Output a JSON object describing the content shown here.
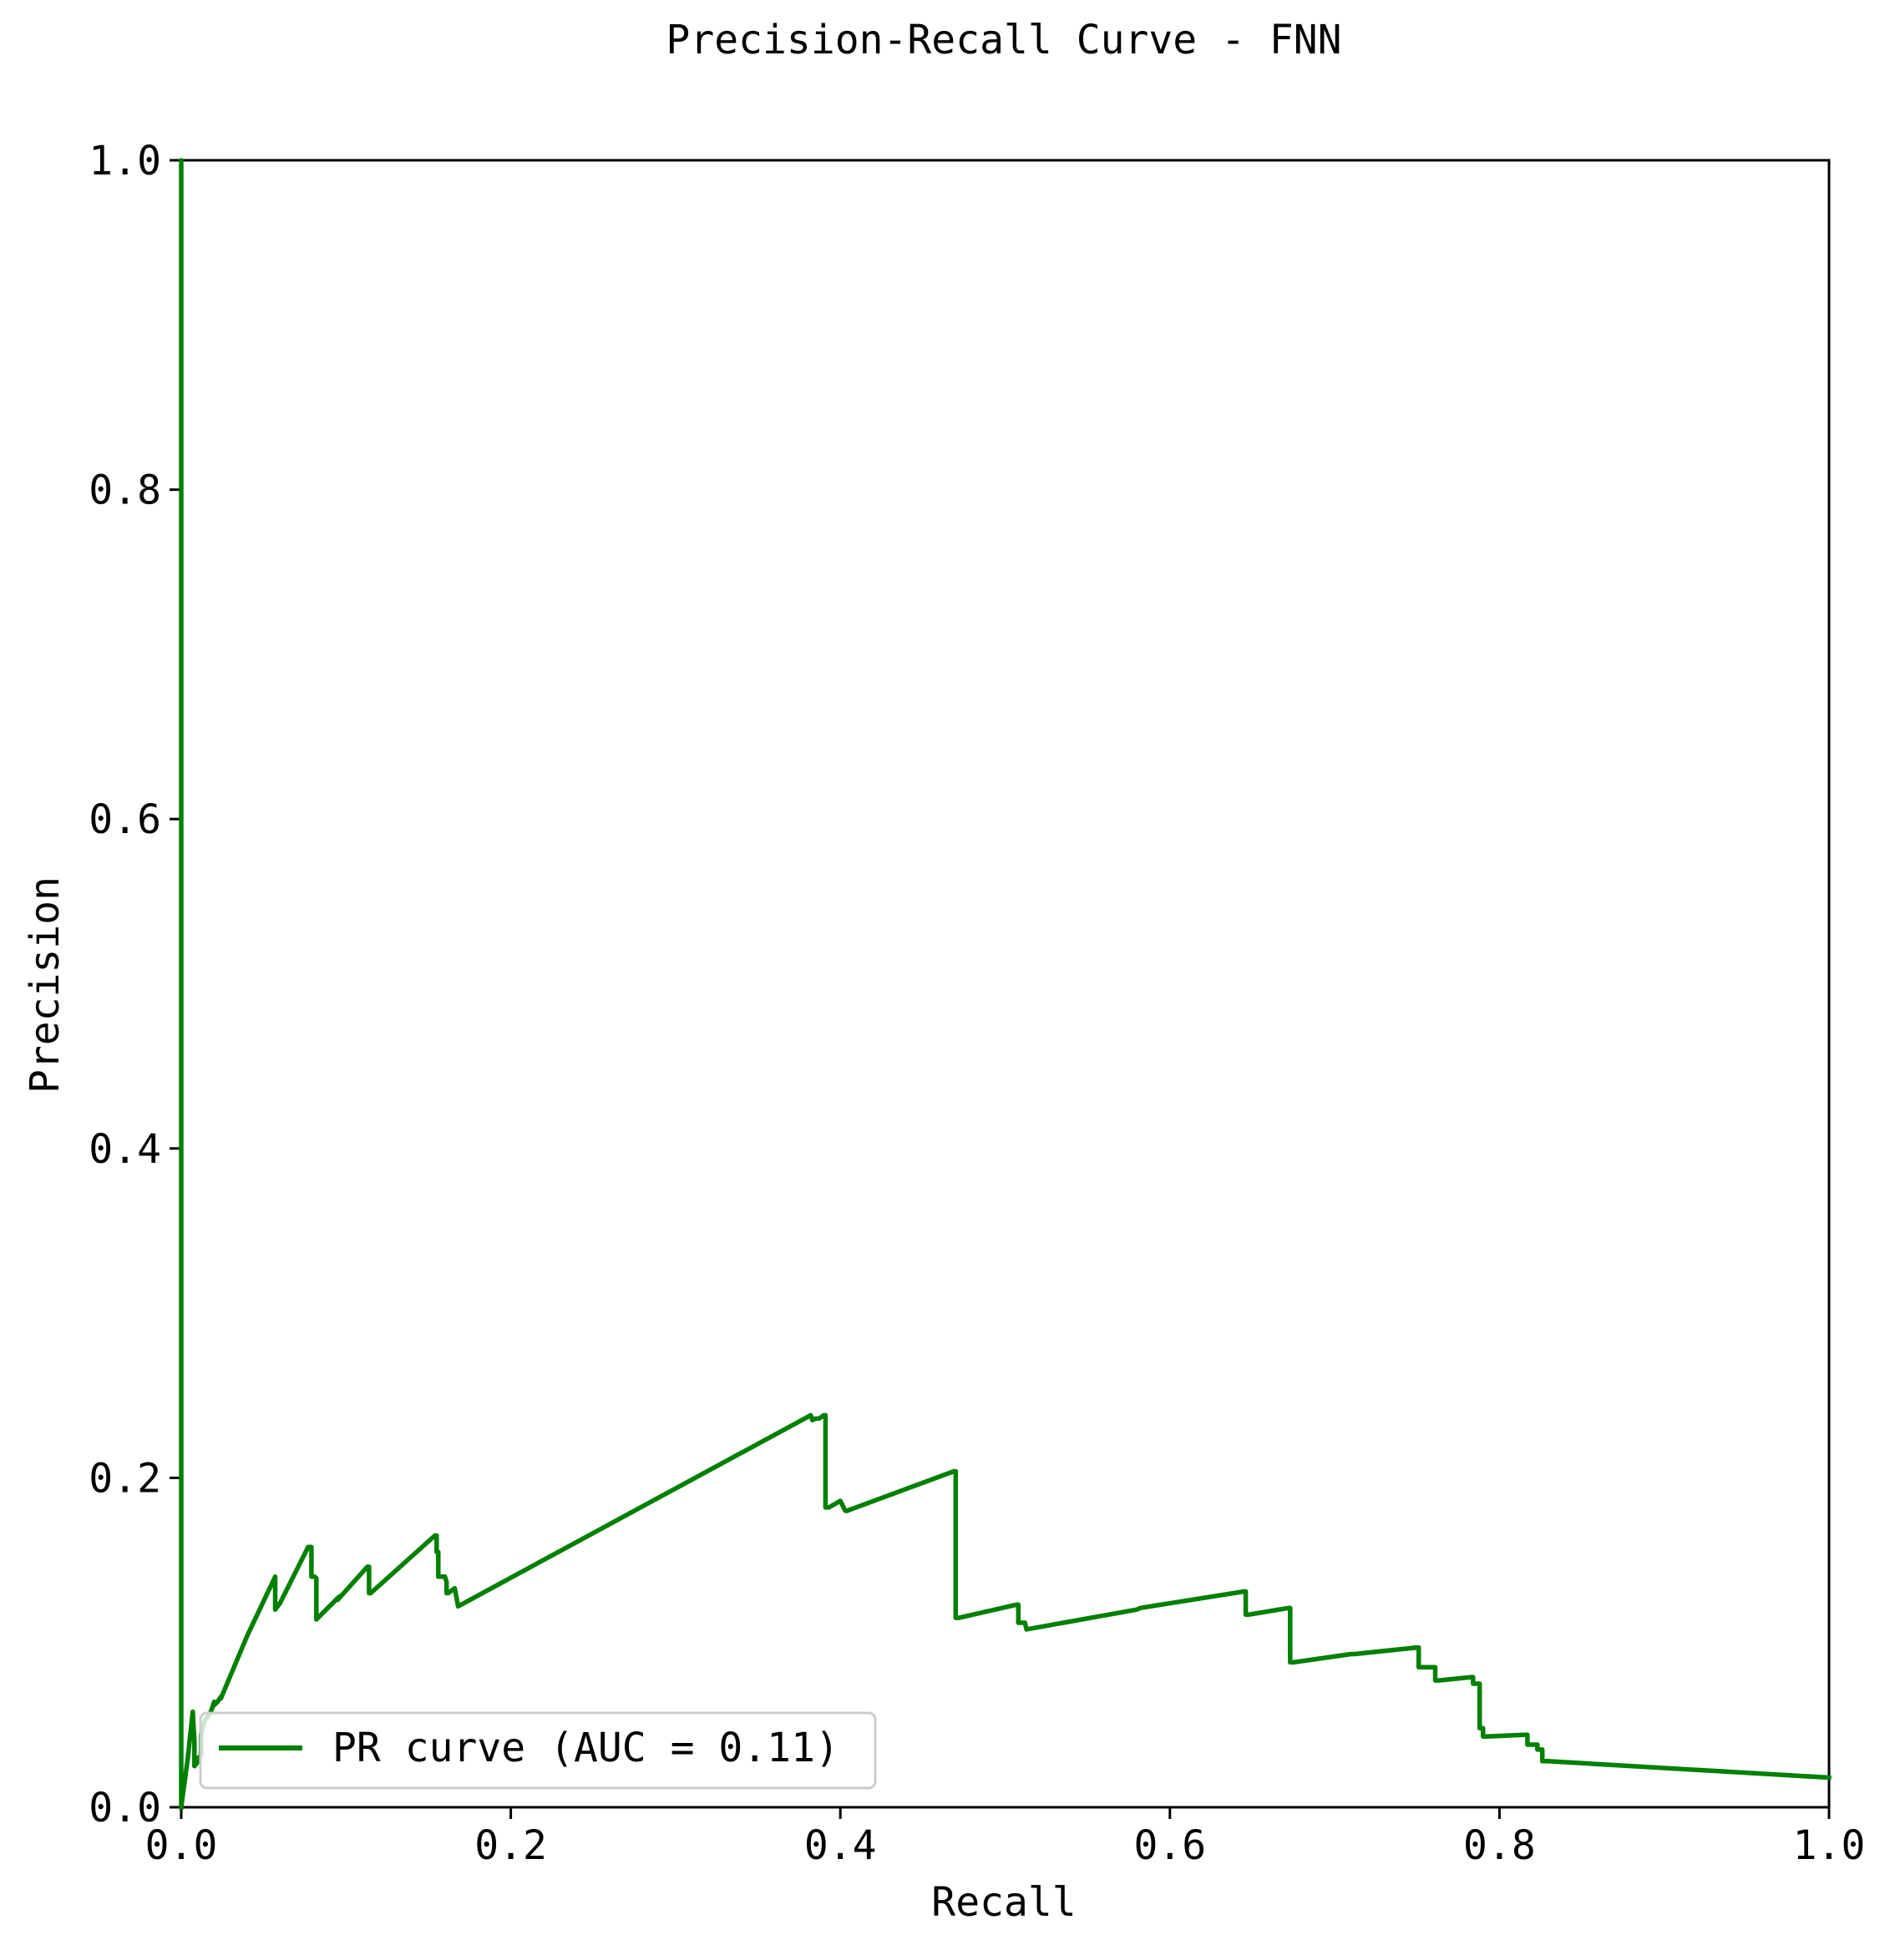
{
  "chart_data": {
    "type": "line",
    "title": "Precision-Recall Curve - FNN",
    "xlabel": "Recall",
    "ylabel": "Precision",
    "xlim": [
      0.0,
      1.0
    ],
    "ylim": [
      0.0,
      1.0
    ],
    "x_ticks": [
      "0.0",
      "0.2",
      "0.4",
      "0.6",
      "0.8",
      "1.0"
    ],
    "y_ticks": [
      "0.0",
      "0.2",
      "0.4",
      "0.6",
      "0.8",
      "1.0"
    ],
    "grid": false,
    "legend_position": "lower-left",
    "series": [
      {
        "name": "PR curve (AUC = 0.11)",
        "color": "#008000",
        "x": [
          0.0,
          0.0,
          0.0,
          0.004,
          0.007,
          0.008,
          0.008,
          0.009,
          0.009,
          0.012,
          0.012,
          0.014,
          0.016,
          0.018,
          0.018,
          0.02,
          0.02,
          0.022,
          0.024,
          0.024,
          0.04,
          0.057,
          0.057,
          0.06,
          0.077,
          0.079,
          0.079,
          0.081,
          0.082,
          0.082,
          0.084,
          0.096,
          0.095,
          0.113,
          0.114,
          0.114,
          0.115,
          0.154,
          0.155,
          0.155,
          0.156,
          0.156,
          0.16,
          0.161,
          0.161,
          0.162,
          0.166,
          0.166,
          0.168,
          0.382,
          0.383,
          0.385,
          0.387,
          0.39,
          0.391,
          0.391,
          0.393,
          0.4,
          0.403,
          0.404,
          0.469,
          0.47,
          0.47,
          0.472,
          0.507,
          0.508,
          0.508,
          0.512,
          0.513,
          0.58,
          0.582,
          0.645,
          0.646,
          0.646,
          0.648,
          0.672,
          0.673,
          0.673,
          0.675,
          0.71,
          0.712,
          0.75,
          0.751,
          0.751,
          0.753,
          0.76,
          0.761,
          0.761,
          0.763,
          0.783,
          0.784,
          0.784,
          0.786,
          0.788,
          0.788,
          0.79,
          0.79,
          0.792,
          0.815,
          0.817,
          0.817,
          0.822,
          0.823,
          0.823,
          0.825,
          0.826,
          0.826,
          0.829,
          1.0
        ],
        "y": [
          0.0,
          1.0,
          0.0,
          0.03,
          0.058,
          0.04,
          0.025,
          0.03,
          0.026,
          0.032,
          0.044,
          0.052,
          0.055,
          0.058,
          0.058,
          0.064,
          0.062,
          0.064,
          0.067,
          0.066,
          0.104,
          0.14,
          0.12,
          0.124,
          0.158,
          0.158,
          0.14,
          0.14,
          0.139,
          0.114,
          0.116,
          0.128,
          0.126,
          0.146,
          0.146,
          0.13,
          0.13,
          0.165,
          0.165,
          0.155,
          0.155,
          0.14,
          0.14,
          0.137,
          0.13,
          0.13,
          0.133,
          0.133,
          0.122,
          0.238,
          0.235,
          0.236,
          0.236,
          0.238,
          0.238,
          0.182,
          0.182,
          0.186,
          0.18,
          0.18,
          0.204,
          0.204,
          0.115,
          0.115,
          0.123,
          0.123,
          0.112,
          0.112,
          0.108,
          0.12,
          0.121,
          0.131,
          0.131,
          0.117,
          0.117,
          0.121,
          0.121,
          0.088,
          0.088,
          0.093,
          0.093,
          0.097,
          0.097,
          0.085,
          0.085,
          0.085,
          0.085,
          0.077,
          0.077,
          0.079,
          0.079,
          0.075,
          0.075,
          0.075,
          0.048,
          0.048,
          0.043,
          0.043,
          0.044,
          0.044,
          0.038,
          0.038,
          0.038,
          0.035,
          0.035,
          0.035,
          0.028,
          0.028,
          0.018
        ]
      }
    ]
  }
}
